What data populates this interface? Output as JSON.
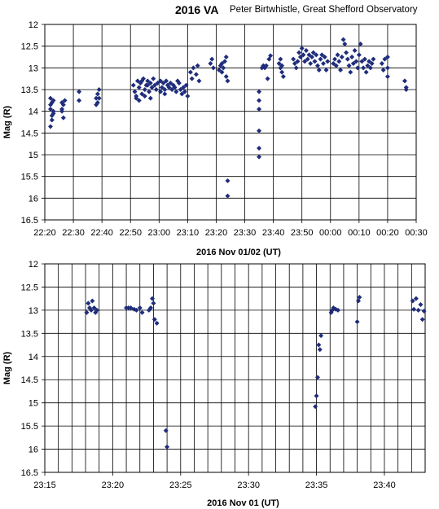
{
  "title": "2016 VA",
  "subtitle": "Peter Birtwhistle, Great Shefford Observatory",
  "colors": {
    "marker": "#1f2d7a",
    "grid": "#000000",
    "background": "#ffffff"
  },
  "chart_data": [
    {
      "type": "scatter",
      "xlabel": "2016 Nov 01/02 (UT)",
      "ylabel": "Mag (R)",
      "xlim": [
        "22:20",
        "00:30"
      ],
      "ylim": [
        16.5,
        12
      ],
      "y_inverted": true,
      "grid": true,
      "x_ticks": [
        "22:20",
        "22:30",
        "22:40",
        "22:50",
        "23:00",
        "23:10",
        "23:20",
        "23:30",
        "23:40",
        "23:50",
        "00:00",
        "00:10",
        "00:20",
        "00:30"
      ],
      "y_ticks": [
        "12",
        "12.5",
        "13",
        "13.5",
        "14",
        "14.5",
        "15",
        "15.5",
        "16",
        "16.5"
      ],
      "points": [
        [
          "22:22:00",
          13.7
        ],
        [
          "22:22:00",
          13.85
        ],
        [
          "22:22:00",
          13.95
        ],
        [
          "22:22:30",
          14.1
        ],
        [
          "22:22:30",
          13.8
        ],
        [
          "22:22:30",
          14.2
        ],
        [
          "22:23:00",
          14.0
        ],
        [
          "22:23:00",
          13.75
        ],
        [
          "22:22:00",
          14.35
        ],
        [
          "22:23:00",
          14.05
        ],
        [
          "22:26:00",
          13.8
        ],
        [
          "22:26:00",
          13.95
        ],
        [
          "22:26:30",
          14.15
        ],
        [
          "22:26:30",
          13.85
        ],
        [
          "22:26:00",
          14.0
        ],
        [
          "22:27:00",
          13.75
        ],
        [
          "22:32:00",
          13.55
        ],
        [
          "22:32:00",
          13.75
        ],
        [
          "22:38:00",
          13.7
        ],
        [
          "22:38:30",
          13.8
        ],
        [
          "22:38:30",
          13.6
        ],
        [
          "22:39:00",
          13.5
        ],
        [
          "22:39:00",
          13.7
        ],
        [
          "22:38:00",
          13.85
        ],
        [
          "22:51:00",
          13.4
        ],
        [
          "22:51:30",
          13.55
        ],
        [
          "22:52:00",
          13.65
        ],
        [
          "22:52:30",
          13.3
        ],
        [
          "22:53:00",
          13.45
        ],
        [
          "22:53:30",
          13.35
        ],
        [
          "22:54:00",
          13.6
        ],
        [
          "22:54:30",
          13.25
        ],
        [
          "22:55:00",
          13.5
        ],
        [
          "22:55:30",
          13.4
        ],
        [
          "22:56:00",
          13.3
        ],
        [
          "22:56:30",
          13.55
        ],
        [
          "22:57:00",
          13.35
        ],
        [
          "22:57:30",
          13.45
        ],
        [
          "22:58:00",
          13.25
        ],
        [
          "22:58:30",
          13.4
        ],
        [
          "22:59:00",
          13.5
        ],
        [
          "22:59:30",
          13.35
        ],
        [
          "22:52:00",
          13.7
        ],
        [
          "22:53:00",
          13.75
        ],
        [
          "22:55:00",
          13.65
        ],
        [
          "22:57:00",
          13.7
        ],
        [
          "22:54:00",
          13.3
        ],
        [
          "22:56:00",
          13.4
        ],
        [
          "23:00:30",
          13.3
        ],
        [
          "23:01:00",
          13.45
        ],
        [
          "23:01:30",
          13.35
        ],
        [
          "23:02:00",
          13.5
        ],
        [
          "23:02:30",
          13.3
        ],
        [
          "23:03:00",
          13.4
        ],
        [
          "23:03:30",
          13.45
        ],
        [
          "23:04:00",
          13.35
        ],
        [
          "23:04:30",
          13.5
        ],
        [
          "23:05:00",
          13.4
        ],
        [
          "23:00:30",
          13.55
        ],
        [
          "23:02:00",
          13.6
        ],
        [
          "23:05:30",
          13.45
        ],
        [
          "23:06:00",
          13.55
        ],
        [
          "23:07:00",
          13.35
        ],
        [
          "23:07:30",
          13.5
        ],
        [
          "23:08:00",
          13.6
        ],
        [
          "23:08:30",
          13.45
        ],
        [
          "23:09:00",
          13.55
        ],
        [
          "23:09:30",
          13.4
        ],
        [
          "23:10:00",
          13.65
        ],
        [
          "23:06:30",
          13.3
        ],
        [
          "23:11:00",
          13.1
        ],
        [
          "23:11:30",
          13.25
        ],
        [
          "23:12:00",
          13.0
        ],
        [
          "23:13:00",
          13.15
        ],
        [
          "23:13:30",
          12.95
        ],
        [
          "23:14:00",
          13.3
        ],
        [
          "23:18:00",
          12.9
        ],
        [
          "23:18:30",
          12.8
        ],
        [
          "23:19:00",
          13.0
        ],
        [
          "23:21:00",
          13.05
        ],
        [
          "23:21:30",
          12.95
        ],
        [
          "23:22:00",
          12.9
        ],
        [
          "23:22:30",
          13.0
        ],
        [
          "23:23:00",
          12.85
        ],
        [
          "23:23:30",
          12.75
        ],
        [
          "23:23:30",
          13.2
        ],
        [
          "23:24:00",
          13.3
        ],
        [
          "23:22:00",
          13.1
        ],
        [
          "23:24:00",
          15.6
        ],
        [
          "23:24:00",
          15.95
        ],
        [
          "23:35:00",
          13.55
        ],
        [
          "23:35:00",
          13.75
        ],
        [
          "23:35:00",
          13.95
        ],
        [
          "23:35:00",
          14.45
        ],
        [
          "23:35:00",
          14.85
        ],
        [
          "23:35:00",
          15.05
        ],
        [
          "23:36:00",
          13.0
        ],
        [
          "23:36:30",
          12.95
        ],
        [
          "23:37:00",
          13.0
        ],
        [
          "23:37:30",
          12.95
        ],
        [
          "23:38:00",
          13.25
        ],
        [
          "23:38:30",
          12.8
        ],
        [
          "23:39:00",
          12.72
        ],
        [
          "23:42:00",
          12.9
        ],
        [
          "23:42:30",
          13.0
        ],
        [
          "23:43:00",
          13.1
        ],
        [
          "23:43:30",
          13.2
        ],
        [
          "23:42:30",
          12.8
        ],
        [
          "23:43:00",
          12.95
        ],
        [
          "23:47:00",
          12.8
        ],
        [
          "23:47:30",
          12.9
        ],
        [
          "23:48:00",
          13.0
        ],
        [
          "23:48:30",
          12.85
        ],
        [
          "23:49:00",
          12.65
        ],
        [
          "23:49:30",
          12.75
        ],
        [
          "23:50:00",
          12.55
        ],
        [
          "23:50:30",
          12.7
        ],
        [
          "23:51:00",
          12.85
        ],
        [
          "23:51:30",
          12.6
        ],
        [
          "23:52:00",
          12.8
        ],
        [
          "23:52:30",
          12.7
        ],
        [
          "23:53:00",
          12.9
        ],
        [
          "23:53:30",
          12.75
        ],
        [
          "23:54:00",
          12.65
        ],
        [
          "23:54:30",
          12.85
        ],
        [
          "23:55:00",
          12.7
        ],
        [
          "23:55:30",
          12.95
        ],
        [
          "23:56:00",
          13.05
        ],
        [
          "23:56:30",
          12.8
        ],
        [
          "23:57:00",
          12.7
        ],
        [
          "23:57:30",
          12.9
        ],
        [
          "23:58:00",
          12.75
        ],
        [
          "23:58:30",
          13.05
        ],
        [
          "23:59:00",
          12.85
        ],
        [
          "00:01:00",
          12.9
        ],
        [
          "00:01:30",
          12.8
        ],
        [
          "00:02:00",
          12.95
        ],
        [
          "00:02:30",
          12.7
        ],
        [
          "00:03:00",
          12.85
        ],
        [
          "00:03:30",
          13.05
        ],
        [
          "00:04:00",
          12.75
        ],
        [
          "00:04:30",
          12.35
        ],
        [
          "00:05:00",
          12.45
        ],
        [
          "00:05:30",
          12.65
        ],
        [
          "00:06:00",
          12.8
        ],
        [
          "00:06:30",
          12.95
        ],
        [
          "00:07:00",
          13.1
        ],
        [
          "00:07:30",
          12.75
        ],
        [
          "00:08:00",
          12.9
        ],
        [
          "00:08:30",
          12.6
        ],
        [
          "00:09:00",
          12.85
        ],
        [
          "00:09:30",
          13.0
        ],
        [
          "00:10:00",
          12.7
        ],
        [
          "00:10:30",
          12.45
        ],
        [
          "00:11:00",
          12.85
        ],
        [
          "00:11:30",
          13.0
        ],
        [
          "00:12:00",
          12.8
        ],
        [
          "00:12:30",
          13.1
        ],
        [
          "00:13:00",
          12.95
        ],
        [
          "00:13:30",
          12.85
        ],
        [
          "00:14:00",
          13.0
        ],
        [
          "00:14:30",
          12.9
        ],
        [
          "00:15:00",
          12.8
        ],
        [
          "00:18:00",
          12.9
        ],
        [
          "00:18:30",
          13.05
        ],
        [
          "00:19:00",
          12.8
        ],
        [
          "00:20:00",
          12.75
        ],
        [
          "00:20:00",
          13.0
        ],
        [
          "00:20:00",
          13.2
        ],
        [
          "00:26:00",
          13.3
        ],
        [
          "00:26:30",
          13.45
        ],
        [
          "00:26:30",
          13.5
        ]
      ]
    },
    {
      "type": "scatter",
      "xlabel": "2016 Nov 01  (UT)",
      "ylabel": "Mag (R)",
      "xlim": [
        "23:15:00",
        "23:43:00"
      ],
      "ylim": [
        16.5,
        12
      ],
      "y_inverted": true,
      "grid": true,
      "x_ticks": [
        "23:15",
        "23:20",
        "23:25",
        "23:30",
        "23:35",
        "23:40"
      ],
      "y_ticks": [
        "12",
        "12.5",
        "13",
        "13.5",
        "14",
        "14.5",
        "15",
        "15.5",
        "16",
        "16.5"
      ],
      "points": [
        [
          "23:18:05",
          13.05
        ],
        [
          "23:18:12",
          12.85
        ],
        [
          "23:18:18",
          12.95
        ],
        [
          "23:18:25",
          13.0
        ],
        [
          "23:18:30",
          12.8
        ],
        [
          "23:18:38",
          12.95
        ],
        [
          "23:18:44",
          13.05
        ],
        [
          "23:18:50",
          13.0
        ],
        [
          "23:21:00",
          12.95
        ],
        [
          "23:21:10",
          12.95
        ],
        [
          "23:21:20",
          12.95
        ],
        [
          "23:21:35",
          12.98
        ],
        [
          "23:21:45",
          13.0
        ],
        [
          "23:22:00",
          12.95
        ],
        [
          "23:22:10",
          13.05
        ],
        [
          "23:22:40",
          13.0
        ],
        [
          "23:22:48",
          12.95
        ],
        [
          "23:22:55",
          12.75
        ],
        [
          "23:23:00",
          12.85
        ],
        [
          "23:23:05",
          13.2
        ],
        [
          "23:23:15",
          13.28
        ],
        [
          "23:23:55",
          15.6
        ],
        [
          "23:24:00",
          15.95
        ],
        [
          "23:34:55",
          15.08
        ],
        [
          "23:35:00",
          14.85
        ],
        [
          "23:35:05",
          14.45
        ],
        [
          "23:35:10",
          13.75
        ],
        [
          "23:35:15",
          13.85
        ],
        [
          "23:35:20",
          13.55
        ],
        [
          "23:36:05",
          13.05
        ],
        [
          "23:36:10",
          13.0
        ],
        [
          "23:36:15",
          12.95
        ],
        [
          "23:36:25",
          12.98
        ],
        [
          "23:36:35",
          13.0
        ],
        [
          "23:38:00",
          13.25
        ],
        [
          "23:38:05",
          12.8
        ],
        [
          "23:38:10",
          12.72
        ],
        [
          "23:42:05",
          12.8
        ],
        [
          "23:42:10",
          12.98
        ],
        [
          "23:42:20",
          12.75
        ],
        [
          "23:42:30",
          13.0
        ],
        [
          "23:42:40",
          12.88
        ],
        [
          "23:42:48",
          13.2
        ],
        [
          "23:42:55",
          13.02
        ]
      ]
    }
  ]
}
